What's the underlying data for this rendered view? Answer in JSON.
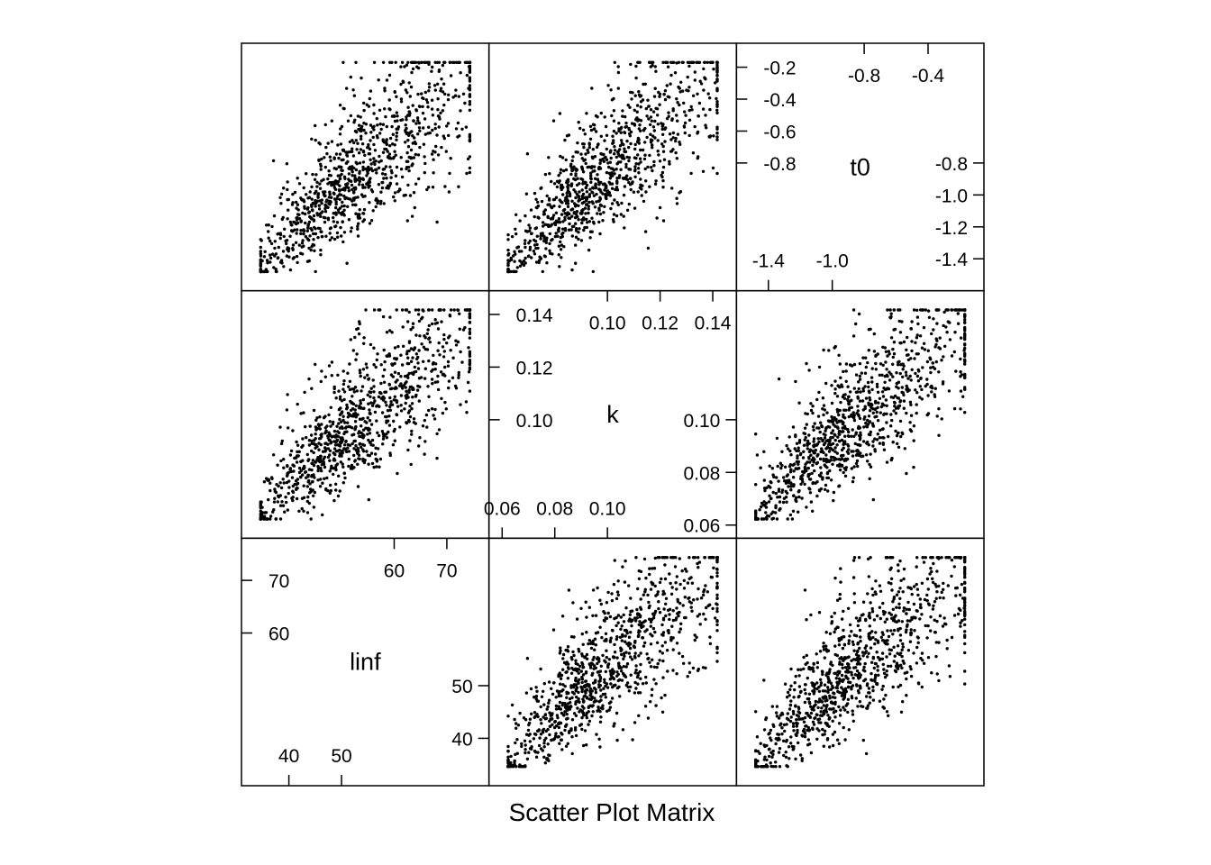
{
  "chart_data": {
    "type": "scatter",
    "subtype": "scatter-plot-matrix",
    "xlabel": "Scatter Plot Matrix",
    "variables": [
      {
        "name": "linf",
        "range": [
          31,
          78
        ],
        "ticks_a": [
          {
            "value": 40,
            "label": "40"
          },
          {
            "value": 50,
            "label": "50"
          }
        ],
        "ticks_b": [
          {
            "value": 60,
            "label": "60"
          },
          {
            "value": 70,
            "label": "70"
          }
        ],
        "ticks_left": [
          {
            "value": 60,
            "label": "60"
          },
          {
            "value": 70,
            "label": "70"
          }
        ],
        "ticks_right": [
          {
            "value": 40,
            "label": "40"
          },
          {
            "value": 50,
            "label": "50"
          }
        ]
      },
      {
        "name": "k",
        "range": [
          0.055,
          0.149
        ],
        "ticks_a": [
          {
            "value": 0.06,
            "label": "0.06"
          },
          {
            "value": 0.08,
            "label": "0.08"
          },
          {
            "value": 0.1,
            "label": "0.10"
          }
        ],
        "ticks_b": [
          {
            "value": 0.1,
            "label": "0.10"
          },
          {
            "value": 0.12,
            "label": "0.12"
          },
          {
            "value": 0.14,
            "label": "0.14"
          }
        ],
        "ticks_left": [
          {
            "value": 0.1,
            "label": "0.10"
          },
          {
            "value": 0.12,
            "label": "0.12"
          },
          {
            "value": 0.14,
            "label": "0.14"
          }
        ],
        "ticks_right": [
          {
            "value": 0.06,
            "label": "0.06"
          },
          {
            "value": 0.08,
            "label": "0.08"
          },
          {
            "value": 0.1,
            "label": "0.10"
          }
        ]
      },
      {
        "name": "t0",
        "range": [
          -1.6,
          -0.05
        ],
        "ticks_a": [
          {
            "value": -1.4,
            "label": "-1.4"
          },
          {
            "value": -1.0,
            "label": "-1.0"
          }
        ],
        "ticks_b": [
          {
            "value": -0.8,
            "label": "-0.8"
          },
          {
            "value": -0.4,
            "label": "-0.4"
          }
        ],
        "ticks_left": [
          {
            "value": -0.8,
            "label": "-0.8"
          },
          {
            "value": -0.6,
            "label": "-0.6"
          },
          {
            "value": -0.4,
            "label": "-0.4"
          },
          {
            "value": -0.2,
            "label": "-0.2"
          }
        ],
        "ticks_right": [
          {
            "value": -1.4,
            "label": "-1.4"
          },
          {
            "value": -1.2,
            "label": "-1.2"
          },
          {
            "value": -1.0,
            "label": "-1.0"
          },
          {
            "value": -0.8,
            "label": "-0.8"
          }
        ]
      }
    ],
    "n_points": 1000,
    "sample": {
      "linf": [
        34,
        38,
        42,
        45,
        48,
        50,
        53,
        55,
        58,
        60,
        63,
        66,
        70,
        73
      ],
      "k": [
        0.062,
        0.07,
        0.076,
        0.082,
        0.088,
        0.094,
        0.098,
        0.102,
        0.108,
        0.114,
        0.12,
        0.126,
        0.134,
        0.142
      ],
      "t0": [
        -1.52,
        -1.42,
        -1.3,
        -1.18,
        -1.06,
        -0.96,
        -0.88,
        -0.78,
        -0.68,
        -0.58,
        -0.48,
        -0.38,
        -0.26,
        -0.14
      ]
    },
    "correlation_note": "all three variables positively correlated, fanning out at higher values",
    "grid": false,
    "legend": "none"
  }
}
